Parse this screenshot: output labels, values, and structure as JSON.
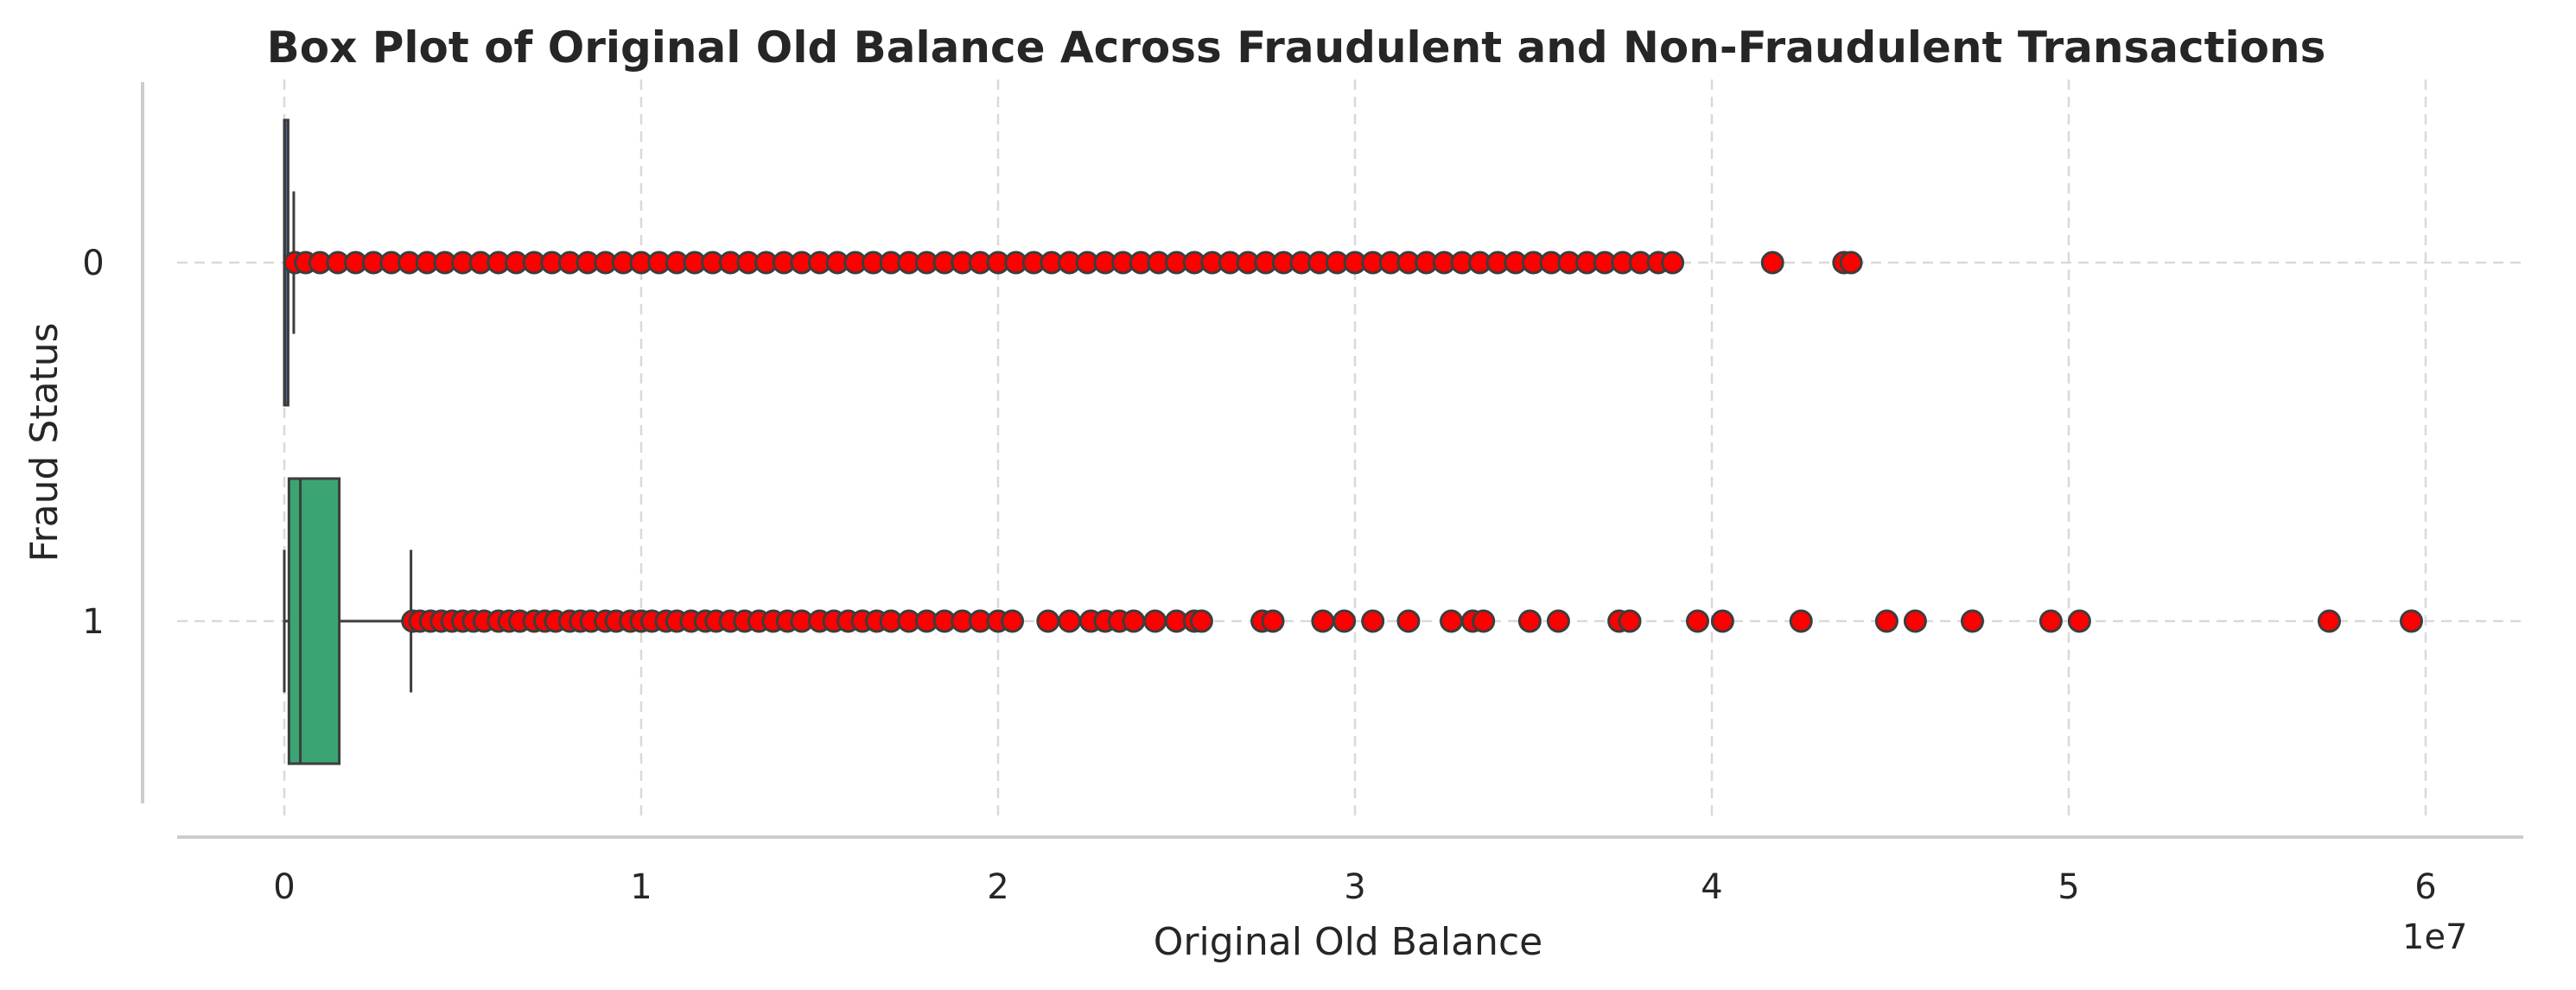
{
  "chart_data": {
    "type": "box",
    "orientation": "horizontal",
    "title": "Box Plot of Original Old Balance Across Fraudulent and Non-Fraudulent Transactions",
    "xlabel": "Original Old Balance",
    "ylabel": "Fraud Status",
    "x_scale_label": "1e7",
    "xlim": [
      -0.3,
      6.25
    ],
    "x_ticks": [
      0,
      1,
      2,
      3,
      4,
      5,
      6
    ],
    "x_tick_labels": [
      "0",
      "1",
      "2",
      "3",
      "4",
      "5",
      "6"
    ],
    "categories": [
      "0",
      "1"
    ],
    "grid": true,
    "colors": {
      "box_0": "#4c72b0",
      "box_1": "#3aa573",
      "outlier_fill": "#ff0000",
      "outlier_edge": "#3d3d3d",
      "line": "#3d3d3d",
      "grid": "#d9d9d9",
      "spine": "#cccccc"
    },
    "boxes": [
      {
        "category": "0",
        "whisker_low": 0,
        "q1": 0,
        "median": 0.0014,
        "q3": 0.0107,
        "whisker_high": 0.0265,
        "outliers": [
          0.03,
          0.06,
          0.1,
          0.15,
          0.2,
          0.25,
          0.3,
          0.35,
          0.4,
          0.45,
          0.5,
          0.55,
          0.6,
          0.65,
          0.7,
          0.75,
          0.8,
          0.85,
          0.9,
          0.95,
          1.0,
          1.05,
          1.1,
          1.15,
          1.2,
          1.25,
          1.3,
          1.35,
          1.4,
          1.45,
          1.5,
          1.55,
          1.6,
          1.65,
          1.7,
          1.75,
          1.8,
          1.85,
          1.9,
          1.95,
          2.0,
          2.05,
          2.1,
          2.15,
          2.2,
          2.25,
          2.3,
          2.35,
          2.4,
          2.45,
          2.5,
          2.55,
          2.6,
          2.65,
          2.7,
          2.75,
          2.8,
          2.85,
          2.9,
          2.95,
          3.0,
          3.05,
          3.1,
          3.15,
          3.2,
          3.25,
          3.3,
          3.35,
          3.4,
          3.45,
          3.5,
          3.55,
          3.6,
          3.65,
          3.7,
          3.75,
          3.8,
          3.85,
          3.89,
          4.17,
          4.37,
          4.39
        ]
      },
      {
        "category": "1",
        "whisker_low": 0,
        "q1": 0.013,
        "median": 0.045,
        "q3": 0.154,
        "whisker_high": 0.355,
        "outliers": [
          0.36,
          0.38,
          0.41,
          0.44,
          0.47,
          0.5,
          0.53,
          0.56,
          0.6,
          0.63,
          0.66,
          0.7,
          0.73,
          0.76,
          0.8,
          0.83,
          0.86,
          0.9,
          0.93,
          0.97,
          1.0,
          1.03,
          1.07,
          1.1,
          1.14,
          1.18,
          1.21,
          1.25,
          1.29,
          1.33,
          1.37,
          1.41,
          1.45,
          1.5,
          1.54,
          1.58,
          1.62,
          1.66,
          1.7,
          1.75,
          1.8,
          1.85,
          1.9,
          1.95,
          2.0,
          2.04,
          2.14,
          2.2,
          2.26,
          2.3,
          2.34,
          2.38,
          2.44,
          2.5,
          2.55,
          2.57,
          2.74,
          2.77,
          2.91,
          2.97,
          3.05,
          3.15,
          3.27,
          3.33,
          3.36,
          3.49,
          3.57,
          3.74,
          3.77,
          3.96,
          4.03,
          4.25,
          4.49,
          4.57,
          4.73,
          4.95,
          5.03,
          5.73,
          5.96
        ]
      }
    ]
  }
}
